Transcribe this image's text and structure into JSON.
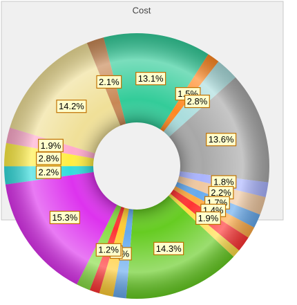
{
  "chart_data": {
    "type": "donut",
    "title": "Cost",
    "values": [
      13.1,
      1.5,
      2.8,
      13.6,
      1.8,
      2.2,
      1.7,
      1.4,
      1.9,
      1.0,
      14.3,
      1.6,
      1.7,
      1.2,
      1.7,
      15.3,
      2.2,
      2.8,
      1.9,
      14.2,
      2.1
    ],
    "value_labels": [
      "13.1%",
      "1.5%",
      "2.8%",
      "13.6%",
      "1.8%",
      "2.2%",
      "1.7%",
      "1.4%",
      "1.9%",
      null,
      "14.3%",
      "%",
      "%",
      "1.2%",
      null,
      "15.3%",
      "2.2%",
      "2.8%",
      "1.9%",
      "14.2%",
      "2.1%"
    ],
    "colors": [
      "#33cc99",
      "#ff8822",
      "#aadddd",
      "#a8a8a8",
      "#aab4ff",
      "#f0c8a0",
      "#66aaee",
      "#ffaa44",
      "#ff3333",
      "#ffdd44",
      "#66cc22",
      "#66aaee",
      "#ffcc33",
      "#ff3333",
      "#88dd44",
      "#dd33ee",
      "#33dddd",
      "#ffee44",
      "#ffaacc",
      "#f0e098",
      "#c88855"
    ]
  }
}
